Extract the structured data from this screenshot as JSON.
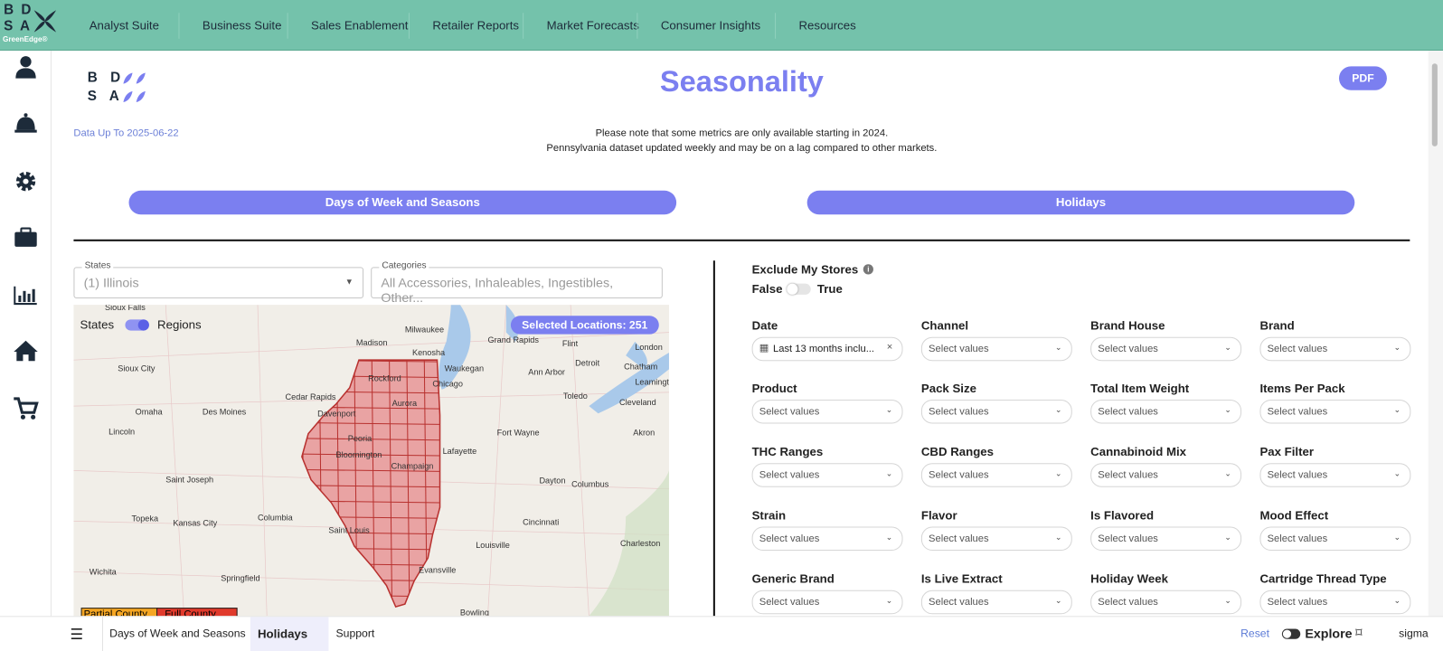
{
  "nav": {
    "logo_top": "B D",
    "logo_bottom": "S A",
    "logo_brand": "GreenEdge®",
    "items": [
      "Analyst Suite",
      "Business Suite",
      "Sales Enablement",
      "Retailer Reports",
      "Market Forecasts",
      "Consumer Insights",
      "Resources"
    ]
  },
  "header": {
    "logo_top": "B D",
    "logo_bottom": "S A",
    "title": "Seasonality",
    "pdf": "PDF",
    "data_date": "Data Up To 2025-06-22",
    "notes": [
      "Please note that some metrics are only available starting in 2024.",
      "Pennsylvania dataset updated weekly and may be on a lag compared to other markets."
    ]
  },
  "tabs": [
    "Days of Week and Seasons",
    "Holidays"
  ],
  "left_filters": [
    {
      "label": "States",
      "value": "(1) Illinois"
    },
    {
      "label": "Categories",
      "value": "All Accessories, Inhaleables, Ingestibles, Other..."
    }
  ],
  "map": {
    "toggle_left": "States",
    "toggle_right": "Regions",
    "badge": "Selected Locations: 251",
    "legend": [
      "Partial County",
      "Full County"
    ],
    "cities": [
      "Sioux Falls",
      "Milwaukee",
      "Madison",
      "Grand Rapids",
      "Flint",
      "London",
      "Kenosha",
      "Detroit",
      "Sioux City",
      "Waukegan",
      "Ann Arbor",
      "Chatham",
      "Rockford",
      "Chicago",
      "Leamington",
      "Cedar Rapids",
      "Toledo",
      "Cleveland",
      "Omaha",
      "Des Moines",
      "Davenport",
      "Aurora",
      "Lincoln",
      "Peoria",
      "Fort Wayne",
      "Akron",
      "Lafayette",
      "Bloomington",
      "Champaign",
      "Saint Joseph",
      "Dayton",
      "Columbus",
      "Topeka",
      "Kansas City",
      "Columbia",
      "Cincinnati",
      "Saint Louis",
      "Louisville",
      "Charleston",
      "Wichita",
      "Springfield",
      "Evansville",
      "Bowling"
    ]
  },
  "exclude": {
    "label": "Exclude My Stores",
    "off": "False",
    "on": "True"
  },
  "filters": [
    {
      "label": "Date",
      "value": "Last 13 months inclu..."
    },
    {
      "label": "Channel",
      "value": "Select values"
    },
    {
      "label": "Brand House",
      "value": "Select values"
    },
    {
      "label": "Brand",
      "value": "Select values"
    },
    {
      "label": "Product",
      "value": "Select values"
    },
    {
      "label": "Pack Size",
      "value": "Select values"
    },
    {
      "label": "Total Item Weight",
      "value": "Select values"
    },
    {
      "label": "Items Per Pack",
      "value": "Select values"
    },
    {
      "label": "THC Ranges",
      "value": "Select values"
    },
    {
      "label": "CBD Ranges",
      "value": "Select values"
    },
    {
      "label": "Cannabinoid Mix",
      "value": "Select values"
    },
    {
      "label": "Pax Filter",
      "value": "Select values"
    },
    {
      "label": "Strain",
      "value": "Select values"
    },
    {
      "label": "Flavor",
      "value": "Select values"
    },
    {
      "label": "Is Flavored",
      "value": "Select values"
    },
    {
      "label": "Mood Effect",
      "value": "Select values"
    },
    {
      "label": "Generic Brand",
      "value": "Select values"
    },
    {
      "label": "Is Live Extract",
      "value": "Select values"
    },
    {
      "label": "Holiday Week",
      "value": "Select values"
    },
    {
      "label": "Cartridge Thread Type",
      "value": "Select values"
    }
  ],
  "bottom_bar": {
    "pages": [
      "Days of Week and Seasons",
      "Holidays",
      "Support"
    ],
    "reset": "Reset",
    "explore": "Explore",
    "brand": "sigma"
  }
}
